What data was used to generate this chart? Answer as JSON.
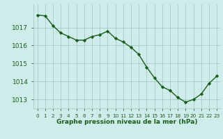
{
  "x": [
    0,
    1,
    2,
    3,
    4,
    5,
    6,
    7,
    8,
    9,
    10,
    11,
    12,
    13,
    14,
    15,
    16,
    17,
    18,
    19,
    20,
    21,
    22,
    23
  ],
  "y": [
    1017.7,
    1017.65,
    1017.1,
    1016.7,
    1016.5,
    1016.3,
    1016.3,
    1016.5,
    1016.6,
    1016.8,
    1016.4,
    1016.2,
    1015.9,
    1015.5,
    1014.8,
    1014.2,
    1013.7,
    1013.5,
    1013.1,
    1012.85,
    1013.0,
    1013.3,
    1013.9,
    1014.3
  ],
  "line_color": "#1a5c1a",
  "marker": "D",
  "marker_size": 2.2,
  "background_color": "#ceecea",
  "grid_color": "#aac8c4",
  "xlabel": "Graphe pression niveau de la mer (hPa)",
  "xlabel_color": "#1a5c1a",
  "tick_color": "#1a5c1a",
  "ylim": [
    1012.5,
    1018.3
  ],
  "xlim": [
    -0.5,
    23.5
  ],
  "yticks": [
    1013,
    1014,
    1015,
    1016,
    1017
  ],
  "xtick_labels": [
    "0",
    "1",
    "2",
    "3",
    "4",
    "5",
    "6",
    "7",
    "8",
    "9",
    "10",
    "11",
    "12",
    "13",
    "14",
    "15",
    "16",
    "17",
    "18",
    "19",
    "20",
    "21",
    "22",
    "23"
  ],
  "line_width": 1.0,
  "marker_edge_color": "#1a5c1a",
  "marker_face_color": "#1a5c1a",
  "ytick_fontsize": 6.5,
  "xtick_fontsize": 5.2,
  "xlabel_fontsize": 6.5
}
